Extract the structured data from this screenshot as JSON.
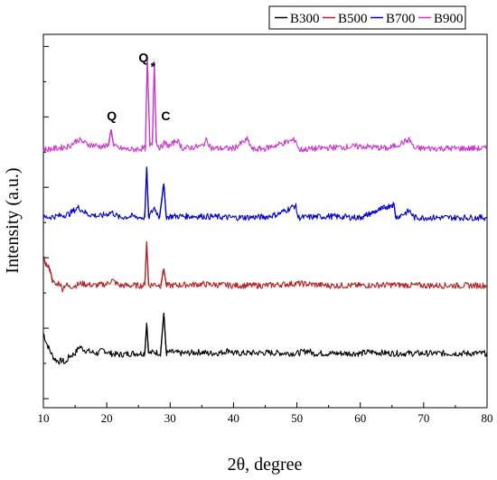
{
  "chart_data": {
    "type": "line",
    "xlabel": "2θ, degree",
    "ylabel": "Intensity (a.u.)",
    "xlim": [
      10,
      80
    ],
    "xticks": [
      10,
      20,
      30,
      40,
      50,
      60,
      70,
      80
    ],
    "y_ticks_labeled": false,
    "grid": false,
    "legend": {
      "position": "top"
    },
    "colors": {
      "B300": "#000000",
      "B500": "#b22222",
      "B700": "#0000cc",
      "B900": "#cc33cc"
    },
    "series": [
      {
        "name": "B300",
        "baseline": 1.0,
        "points": [
          [
            10,
            1.3
          ],
          [
            10.5,
            1.15
          ],
          [
            11,
            1.05
          ],
          [
            11.5,
            0.95
          ],
          [
            12,
            0.9
          ],
          [
            12.5,
            0.88
          ],
          [
            13,
            0.9
          ],
          [
            13.5,
            0.85
          ],
          [
            14,
            0.95
          ],
          [
            15,
            1.0
          ],
          [
            15.7,
            1.1
          ],
          [
            16.5,
            1.05
          ],
          [
            17.5,
            1.02
          ],
          [
            18.5,
            1.0
          ],
          [
            19.5,
            1.05
          ],
          [
            20.5,
            1.0
          ],
          [
            22,
            0.98
          ],
          [
            24,
            1.0
          ],
          [
            25.5,
            1.0
          ],
          [
            26,
            1.0
          ],
          [
            26.3,
            1.45
          ],
          [
            26.6,
            1.0
          ],
          [
            27.5,
            1.02
          ],
          [
            28.5,
            1.0
          ],
          [
            29.0,
            1.6
          ],
          [
            29.4,
            1.0
          ],
          [
            30,
            1.02
          ],
          [
            32,
            1.0
          ],
          [
            35,
            1.02
          ],
          [
            36,
            1.0
          ],
          [
            38,
            1.01
          ],
          [
            39.4,
            1.05
          ],
          [
            40,
            1.0
          ],
          [
            45,
            1.01
          ],
          [
            50,
            1.0
          ],
          [
            51.8,
            1.04
          ],
          [
            52.5,
            1.0
          ],
          [
            55,
            1.0
          ],
          [
            60,
            1.0
          ],
          [
            61.5,
            1.02
          ],
          [
            65,
            1.0
          ],
          [
            70,
            1.0
          ],
          [
            75,
            1.0
          ],
          [
            80,
            1.0
          ]
        ]
      },
      {
        "name": "B500",
        "baseline": 2.0,
        "points": [
          [
            10,
            2.4
          ],
          [
            10.5,
            2.3
          ],
          [
            11,
            2.25
          ],
          [
            11.5,
            2.05
          ],
          [
            12,
            2.0
          ],
          [
            12.5,
            2.05
          ],
          [
            13,
            1.95
          ],
          [
            13.5,
            2.02
          ],
          [
            14,
            1.98
          ],
          [
            15,
            2.0
          ],
          [
            16,
            2.03
          ],
          [
            18,
            2.0
          ],
          [
            20,
            2.02
          ],
          [
            20.8,
            2.08
          ],
          [
            22,
            2.0
          ],
          [
            24,
            2.0
          ],
          [
            25.5,
            2.0
          ],
          [
            26,
            2.0
          ],
          [
            26.3,
            2.65
          ],
          [
            26.6,
            2.0
          ],
          [
            27.5,
            2.02
          ],
          [
            28.5,
            2.0
          ],
          [
            29.0,
            2.25
          ],
          [
            29.4,
            2.0
          ],
          [
            30,
            2.0
          ],
          [
            35,
            2.02
          ],
          [
            40,
            2.0
          ],
          [
            45,
            2.0
          ],
          [
            50,
            2.03
          ],
          [
            55,
            2.0
          ],
          [
            60,
            2.0
          ],
          [
            65,
            2.01
          ],
          [
            70,
            2.0
          ],
          [
            75,
            2.0
          ],
          [
            80,
            2.0
          ]
        ]
      },
      {
        "name": "B700",
        "baseline": 3.0,
        "points": [
          [
            10,
            3.0
          ],
          [
            12,
            3.02
          ],
          [
            14,
            3.05
          ],
          [
            15.5,
            3.15
          ],
          [
            17,
            3.05
          ],
          [
            19,
            3.02
          ],
          [
            20.8,
            3.08
          ],
          [
            22,
            3.0
          ],
          [
            24,
            3.02
          ],
          [
            25.5,
            3.0
          ],
          [
            26,
            3.0
          ],
          [
            26.3,
            3.75
          ],
          [
            26.6,
            3.0
          ],
          [
            27.5,
            3.15
          ],
          [
            28.3,
            3.0
          ],
          [
            29.0,
            3.5
          ],
          [
            29.4,
            3.0
          ],
          [
            30,
            3.02
          ],
          [
            35,
            3.02
          ],
          [
            40,
            3.0
          ],
          [
            45,
            3.01
          ],
          [
            47,
            3.05
          ],
          [
            49.8,
            3.18
          ],
          [
            50.2,
            3.0
          ],
          [
            55,
            3.02
          ],
          [
            60,
            3.0
          ],
          [
            65.3,
            3.2
          ],
          [
            65.6,
            3.0
          ],
          [
            67.8,
            3.1
          ],
          [
            68.5,
            3.0
          ],
          [
            70,
            3.0
          ],
          [
            75,
            3.0
          ],
          [
            80,
            3.0
          ]
        ]
      },
      {
        "name": "B900",
        "baseline": 4.0,
        "points": [
          [
            10,
            4.0
          ],
          [
            12,
            4.02
          ],
          [
            14,
            4.05
          ],
          [
            15.5,
            4.15
          ],
          [
            17,
            4.08
          ],
          [
            19,
            4.05
          ],
          [
            20.2,
            4.05
          ],
          [
            20.7,
            4.3
          ],
          [
            21.1,
            4.05
          ],
          [
            22,
            4.02
          ],
          [
            24,
            4.0
          ],
          [
            25.5,
            4.02
          ],
          [
            26.1,
            4.02
          ],
          [
            26.4,
            5.35
          ],
          [
            26.8,
            4.05
          ],
          [
            27.2,
            4.1
          ],
          [
            27.5,
            5.3
          ],
          [
            27.8,
            4.1
          ],
          [
            28.5,
            4.02
          ],
          [
            29.0,
            4.1
          ],
          [
            30,
            4.05
          ],
          [
            31,
            4.15
          ],
          [
            32,
            4.02
          ],
          [
            35,
            4.05
          ],
          [
            35.8,
            4.15
          ],
          [
            36.5,
            4.02
          ],
          [
            40,
            4.02
          ],
          [
            42.2,
            4.15
          ],
          [
            43,
            4.0
          ],
          [
            45,
            4.02
          ],
          [
            49.8,
            4.15
          ],
          [
            50.3,
            4.0
          ],
          [
            55,
            4.03
          ],
          [
            60,
            4.05
          ],
          [
            64.5,
            4.02
          ],
          [
            67.8,
            4.15
          ],
          [
            68.5,
            4.02
          ],
          [
            70,
            4.02
          ],
          [
            75,
            4.02
          ],
          [
            80,
            4.02
          ]
        ]
      }
    ],
    "annotations": [
      {
        "text": "Q",
        "x": 20.8,
        "series": "B900"
      },
      {
        "text": "Q",
        "x": 25.8,
        "series": "B900"
      },
      {
        "text": "*",
        "x": 27.3,
        "series": "B900"
      },
      {
        "text": "C",
        "x": 29.3,
        "series": "B900"
      }
    ]
  }
}
